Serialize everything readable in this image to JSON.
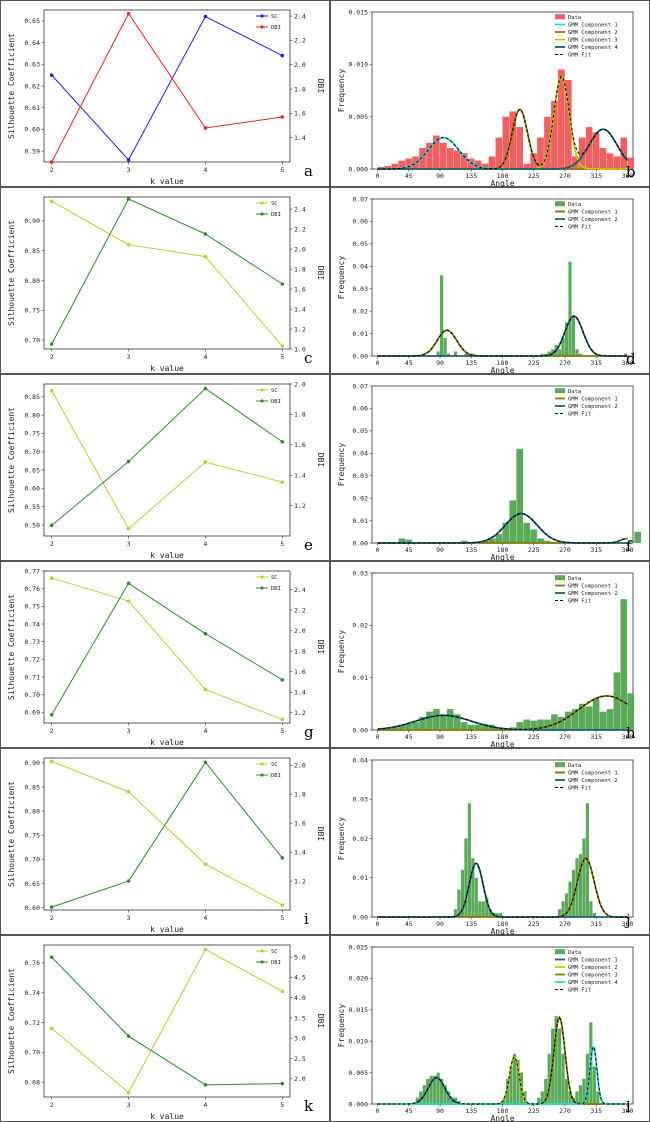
{
  "colors": {
    "border": "#555555",
    "sc_blue": "#1f1fee",
    "dbi_red": "#ee2222",
    "yellow": "#c8c832",
    "green": "#2e8b2e",
    "hist_red": "#f06060",
    "hist_green": "#5aaa5a",
    "c_olive": "#857a00",
    "c_teal": "#1a6070",
    "c_cyan": "#22dddd",
    "c_yellow": "#c8c800",
    "fit": "#000000"
  },
  "chart_data": [
    {
      "type": "line",
      "panel": "a",
      "xlabel": "k value",
      "ylabel": "Silhouette Coefficient",
      "y2label": "DBI",
      "x": [
        2,
        3,
        4,
        5
      ],
      "ylim": [
        0.585,
        0.655
      ],
      "yticks": [
        0.59,
        0.6,
        0.61,
        0.62,
        0.63,
        0.64,
        0.65
      ],
      "y2lim": [
        1.2,
        2.45
      ],
      "y2ticks": [
        1.4,
        1.6,
        1.8,
        2.0,
        2.2,
        2.4
      ],
      "series": [
        {
          "name": "SC",
          "axis": "left",
          "color": "#1f1fee",
          "values": [
            0.625,
            0.586,
            0.652,
            0.634
          ]
        },
        {
          "name": "DBI",
          "axis": "right",
          "color": "#ee2222",
          "values": [
            1.2,
            2.42,
            1.48,
            1.57
          ]
        }
      ]
    },
    {
      "type": "histogram",
      "panel": "b",
      "xlabel": "Angle",
      "ylabel": "Frequency",
      "xticks": [
        0,
        45,
        90,
        135,
        180,
        225,
        270,
        315,
        360
      ],
      "ylim": [
        0,
        0.015
      ],
      "yticks": [
        0.0,
        0.005,
        0.01,
        0.015
      ],
      "ytick_labels": [
        "0.000",
        "0.005",
        "0.010",
        "0.015"
      ],
      "legend_labels": [
        "Data",
        "GMM Component 1",
        "GMM Component 2",
        "GMM Component 3",
        "GMM Component 4",
        "GMM Fit"
      ],
      "bars": {
        "start": 0,
        "width": 10,
        "color": "#f06060",
        "values": [
          0.0002,
          0.0003,
          0.0005,
          0.0008,
          0.001,
          0.0012,
          0.002,
          0.0025,
          0.0032,
          0.0025,
          0.002,
          0.0018,
          0.0015,
          0.001,
          0.0008,
          0.0005,
          0.0012,
          0.003,
          0.005,
          0.0055,
          0.004,
          0.0005,
          0.0015,
          0.003,
          0.005,
          0.0065,
          0.0095,
          0.0085,
          0.0012,
          0.003,
          0.004,
          0.0035,
          0.002,
          0.0015,
          0.0012,
          0.003,
          0.0011
        ]
      },
      "components": [
        {
          "name": "GMM Component 1",
          "mean": 95,
          "sd": 22,
          "peak": 0.003,
          "color": "#22dddd"
        },
        {
          "name": "GMM Component 2",
          "mean": 205,
          "sd": 11,
          "peak": 0.0057,
          "color": "#857a00"
        },
        {
          "name": "GMM Component 3",
          "mean": 265,
          "sd": 11,
          "peak": 0.0088,
          "color": "#c8c800"
        },
        {
          "name": "GMM Component 4",
          "mean": 325,
          "sd": 20,
          "peak": 0.0038,
          "color": "#1a6070"
        }
      ]
    },
    {
      "type": "line",
      "panel": "c",
      "xlabel": "k value",
      "ylabel": "Silhouette Coefficient",
      "y2label": "DBI",
      "x": [
        2,
        3,
        4,
        5
      ],
      "ylim": [
        0.685,
        0.94
      ],
      "yticks": [
        0.7,
        0.75,
        0.8,
        0.85,
        0.9
      ],
      "y2lim": [
        1.0,
        2.52
      ],
      "y2ticks": [
        1.0,
        1.2,
        1.4,
        1.6,
        1.8,
        2.0,
        2.2,
        2.4
      ],
      "series": [
        {
          "name": "SC",
          "axis": "left",
          "color": "#c8c832",
          "values": [
            0.933,
            0.86,
            0.84,
            0.69
          ]
        },
        {
          "name": "DBI",
          "axis": "right",
          "color": "#2e8b2e",
          "values": [
            1.05,
            2.5,
            2.15,
            1.65
          ]
        }
      ]
    },
    {
      "type": "histogram",
      "panel": "d",
      "xlabel": "Angle",
      "ylabel": "Frequency",
      "xticks": [
        0,
        45,
        90,
        135,
        180,
        225,
        270,
        315,
        360
      ],
      "ylim": [
        0,
        0.07
      ],
      "yticks": [
        0.0,
        0.01,
        0.02,
        0.03,
        0.04,
        0.05,
        0.06,
        0.07
      ],
      "ytick_labels": [
        "0.00",
        "0.01",
        "0.02",
        "0.03",
        "0.04",
        "0.05",
        "0.06",
        "0.07"
      ],
      "legend_labels": [
        "Data",
        "GMM Component 1",
        "GMM Component 2",
        "GMM Fit"
      ],
      "bars": {
        "start": 0,
        "width": 5,
        "color": "#5aaa5a",
        "values": [
          0,
          0,
          0,
          0,
          0,
          0,
          0,
          0,
          0,
          0,
          0,
          0,
          0,
          0,
          0,
          0,
          0,
          0.002,
          0.036,
          0.008,
          0.001,
          0,
          0.002,
          0,
          0,
          0.001,
          0.001,
          0.001,
          0.0005,
          0.0005,
          0,
          0,
          0,
          0,
          0,
          0.0005,
          0,
          0,
          0,
          0,
          0,
          0.0005,
          0,
          0,
          0,
          0,
          0,
          0.001,
          0.001,
          0.002,
          0.003,
          0.005,
          0.003,
          0.008,
          0.015,
          0.042,
          0.018,
          0.003,
          0.001,
          0.0005,
          0,
          0,
          0,
          0,
          0,
          0,
          0,
          0,
          0,
          0,
          0,
          0.001
        ]
      },
      "components": [
        {
          "name": "GMM Component 1",
          "mean": 100,
          "sd": 14,
          "peak": 0.0115,
          "color": "#857a00"
        },
        {
          "name": "GMM Component 2",
          "mean": 283,
          "sd": 13,
          "peak": 0.0178,
          "color": "#1a6070"
        }
      ]
    },
    {
      "type": "line",
      "panel": "e",
      "xlabel": "k value",
      "ylabel": "Silhouette Coefficient",
      "y2label": "DBI",
      "x": [
        2,
        3,
        4,
        5
      ],
      "ylim": [
        0.47,
        0.885
      ],
      "yticks": [
        0.5,
        0.55,
        0.6,
        0.65,
        0.7,
        0.75,
        0.8,
        0.85
      ],
      "y2lim": [
        1.0,
        2.0
      ],
      "y2ticks": [
        1.2,
        1.4,
        1.6,
        1.8,
        2.0
      ],
      "series": [
        {
          "name": "SC",
          "axis": "left",
          "color": "#c8c832",
          "values": [
            0.867,
            0.49,
            0.672,
            0.617
          ]
        },
        {
          "name": "DBI",
          "axis": "right",
          "color": "#2e8b2e",
          "values": [
            1.07,
            1.49,
            1.97,
            1.62
          ]
        }
      ]
    },
    {
      "type": "histogram",
      "panel": "f",
      "xlabel": "Angle",
      "ylabel": "Frequency",
      "xticks": [
        0,
        45,
        90,
        135,
        180,
        225,
        270,
        315,
        360
      ],
      "ylim": [
        0,
        0.07
      ],
      "yticks": [
        0.0,
        0.01,
        0.02,
        0.03,
        0.04,
        0.05,
        0.06,
        0.07
      ],
      "ytick_labels": [
        "0.00",
        "0.01",
        "0.02",
        "0.03",
        "0.04",
        "0.05",
        "0.06",
        "0.07"
      ],
      "legend_labels": [
        "Data",
        "GMM Component 1",
        "GMM Component 2",
        "GMM Fit"
      ],
      "bars": {
        "start": 0,
        "width": 10,
        "color": "#5aaa5a",
        "values": [
          0,
          0,
          0,
          0.002,
          0.0015,
          0,
          0,
          0,
          0,
          0,
          0,
          0,
          0.001,
          0,
          0,
          0.001,
          0.002,
          0.004,
          0.009,
          0.019,
          0.042,
          0.009,
          0.006,
          0.002,
          0.001,
          0.0005,
          0,
          0,
          0,
          0,
          0,
          0,
          0,
          0,
          0,
          0,
          0.001,
          0.005
        ]
      },
      "components": [
        {
          "name": "GMM Component 1",
          "mean": 360,
          "sd": 10,
          "peak": 0.002,
          "color": "#857a00"
        },
        {
          "name": "GMM Component 2",
          "mean": 207,
          "sd": 23,
          "peak": 0.0131,
          "color": "#1a6070"
        }
      ]
    },
    {
      "type": "line",
      "panel": "g",
      "xlabel": "k value",
      "ylabel": "Silhouette Coefficient",
      "y2label": "DBI",
      "x": [
        2,
        3,
        4,
        5
      ],
      "ylim": [
        0.684,
        0.77
      ],
      "yticks": [
        0.69,
        0.7,
        0.71,
        0.72,
        0.73,
        0.74,
        0.75,
        0.76,
        0.77
      ],
      "y2lim": [
        1.1,
        2.58
      ],
      "y2ticks": [
        1.2,
        1.4,
        1.6,
        1.8,
        2.0,
        2.2,
        2.4
      ],
      "series": [
        {
          "name": "SC",
          "axis": "left",
          "color": "#c8c832",
          "values": [
            0.766,
            0.753,
            0.703,
            0.686
          ]
        },
        {
          "name": "DBI",
          "axis": "right",
          "color": "#2e8b2e",
          "values": [
            1.18,
            2.46,
            1.97,
            1.52
          ]
        }
      ]
    },
    {
      "type": "histogram",
      "panel": "h",
      "xlabel": "Angle",
      "ylabel": "Frequency",
      "xticks": [
        0,
        45,
        90,
        135,
        180,
        225,
        270,
        315,
        360
      ],
      "ylim": [
        0,
        0.03
      ],
      "yticks": [
        0.0,
        0.01,
        0.02,
        0.03
      ],
      "ytick_labels": [
        "0.00",
        "0.01",
        "0.02",
        "0.03"
      ],
      "legend_labels": [
        "Data",
        "GMM Component 1",
        "GMM Component 2",
        "GMM Fit"
      ],
      "bars": {
        "start": 0,
        "width": 10,
        "color": "#5aaa5a",
        "values": [
          0.0002,
          0.0003,
          0.0005,
          0.001,
          0.0012,
          0.0015,
          0.0025,
          0.0035,
          0.004,
          0.003,
          0.004,
          0.003,
          0.0015,
          0.001,
          0.001,
          0.0012,
          0.001,
          0.0003,
          0,
          0.0005,
          0.0015,
          0.002,
          0.0018,
          0.002,
          0.002,
          0.003,
          0.0025,
          0.0035,
          0.004,
          0.005,
          0.0045,
          0.006,
          0.0035,
          0.004,
          0.011,
          0.025,
          0.007
        ]
      },
      "components": [
        {
          "name": "GMM Component 1",
          "mean": 330,
          "sd": 40,
          "peak": 0.0065,
          "color": "#857a00"
        },
        {
          "name": "GMM Component 2",
          "mean": 95,
          "sd": 40,
          "peak": 0.0028,
          "color": "#1a6070"
        }
      ]
    },
    {
      "type": "line",
      "panel": "i",
      "xlabel": "k value",
      "ylabel": "Silhouette Coefficient",
      "y2label": "DBI",
      "x": [
        2,
        3,
        4,
        5
      ],
      "ylim": [
        0.595,
        0.91
      ],
      "yticks": [
        0.6,
        0.65,
        0.7,
        0.75,
        0.8,
        0.85,
        0.9
      ],
      "y2lim": [
        1.0,
        2.05
      ],
      "y2ticks": [
        1.2,
        1.4,
        1.6,
        1.8,
        2.0
      ],
      "series": [
        {
          "name": "SC",
          "axis": "left",
          "color": "#c8c832",
          "values": [
            0.903,
            0.84,
            0.69,
            0.605
          ]
        },
        {
          "name": "DBI",
          "axis": "right",
          "color": "#2e8b2e",
          "values": [
            1.02,
            1.2,
            2.02,
            1.36
          ]
        }
      ]
    },
    {
      "type": "histogram",
      "panel": "j",
      "xlabel": "Angle",
      "ylabel": "Frequency",
      "xticks": [
        0,
        45,
        90,
        135,
        180,
        225,
        270,
        315,
        360
      ],
      "ylim": [
        0,
        0.04
      ],
      "yticks": [
        0.0,
        0.01,
        0.02,
        0.03,
        0.04
      ],
      "ytick_labels": [
        "0.00",
        "0.01",
        "0.02",
        "0.03",
        "0.04"
      ],
      "legend_labels": [
        "Data",
        "GMM Component 1",
        "GMM Component 2",
        "GMM Fit"
      ],
      "bars": {
        "start": 0,
        "width": 5,
        "color": "#5aaa5a",
        "values": [
          0,
          0,
          0,
          0,
          0,
          0,
          0,
          0,
          0,
          0,
          0,
          0,
          0,
          0,
          0,
          0,
          0,
          0,
          0,
          0,
          0,
          0,
          0.002,
          0.007,
          0.012,
          0.02,
          0.029,
          0.015,
          0.01,
          0.004,
          0.004,
          0.005,
          0.002,
          0.001,
          0.001,
          0.001,
          0,
          0,
          0,
          0,
          0,
          0,
          0,
          0,
          0,
          0,
          0,
          0,
          0,
          0,
          0,
          0,
          0.002,
          0.004,
          0.006,
          0.009,
          0.012,
          0.015,
          0.016,
          0.02,
          0.029,
          0.004,
          0.001,
          0,
          0,
          0,
          0,
          0,
          0,
          0,
          0,
          0
        ]
      },
      "components": [
        {
          "name": "GMM Component 1",
          "mean": 300,
          "sd": 12,
          "peak": 0.015,
          "color": "#857a00"
        },
        {
          "name": "GMM Component 2",
          "mean": 142,
          "sd": 10,
          "peak": 0.0137,
          "color": "#1a6070"
        }
      ]
    },
    {
      "type": "line",
      "panel": "k",
      "xlabel": "k value",
      "ylabel": "Silhouette Coefficient",
      "y2label": "DBI",
      "x": [
        2,
        3,
        4,
        5
      ],
      "ylim": [
        0.67,
        0.772
      ],
      "yticks": [
        0.68,
        0.7,
        0.72,
        0.74,
        0.76
      ],
      "y2lim": [
        1.55,
        5.3
      ],
      "y2ticks": [
        2.0,
        2.5,
        3.0,
        3.5,
        4.0,
        4.5,
        5.0
      ],
      "series": [
        {
          "name": "SC",
          "axis": "left",
          "color": "#c8c832",
          "values": [
            0.716,
            0.673,
            0.769,
            0.741
          ]
        },
        {
          "name": "DBI",
          "axis": "right",
          "color": "#2e8b2e",
          "values": [
            5.0,
            3.05,
            1.85,
            1.88
          ]
        }
      ]
    },
    {
      "type": "histogram",
      "panel": "l",
      "xlabel": "Angle",
      "ylabel": "Frequency",
      "xticks": [
        0,
        45,
        90,
        135,
        180,
        225,
        270,
        315,
        360
      ],
      "ylim": [
        0,
        0.025
      ],
      "yticks": [
        0.0,
        0.005,
        0.01,
        0.015,
        0.02,
        0.025
      ],
      "ytick_labels": [
        "0.000",
        "0.005",
        "0.010",
        "0.015",
        "0.020",
        "0.025"
      ],
      "legend_labels": [
        "Data",
        "GMM Component 1",
        "GMM Component 2",
        "GMM Component 3",
        "GMM Component 4",
        "GMM Fit"
      ],
      "bars": {
        "start": 0,
        "width": 5,
        "color": "#5aaa5a",
        "values": [
          0,
          0,
          0,
          0,
          0,
          0,
          0,
          0,
          0,
          0,
          0,
          0.001,
          0.002,
          0.003,
          0.004,
          0.0045,
          0.0045,
          0.005,
          0.004,
          0.003,
          0.002,
          0.001,
          0.001,
          0.0005,
          0,
          0,
          0,
          0,
          0,
          0,
          0,
          0,
          0,
          0,
          0,
          0,
          0.001,
          0.004,
          0.006,
          0.008,
          0.007,
          0.005,
          0.002,
          0,
          0,
          0,
          0.001,
          0.002,
          0.004,
          0.008,
          0.012,
          0.014,
          0.012,
          0.008,
          0.004,
          0.002,
          0.001,
          0.002,
          0.003,
          0.004,
          0.008,
          0.013,
          0.006,
          0.002,
          0,
          0,
          0,
          0,
          0,
          0,
          0,
          0
        ]
      },
      "components": [
        {
          "name": "GMM Component 1",
          "mean": 85,
          "sd": 12,
          "peak": 0.0042,
          "color": "#1a6070"
        },
        {
          "name": "GMM Component 2",
          "mean": 197,
          "sd": 7,
          "peak": 0.0075,
          "color": "#c8c800"
        },
        {
          "name": "GMM Component 3",
          "mean": 262,
          "sd": 8,
          "peak": 0.0138,
          "color": "#857a00"
        },
        {
          "name": "GMM Component 4",
          "mean": 311,
          "sd": 5,
          "peak": 0.0092,
          "color": "#22dddd"
        }
      ]
    }
  ]
}
